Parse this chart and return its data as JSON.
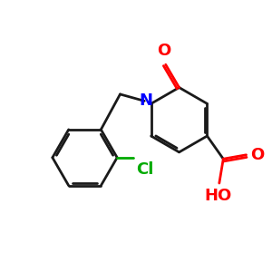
{
  "background_color": "#ffffff",
  "bond_color": "#1a1a1a",
  "n_color": "#0000ff",
  "o_color": "#ff0000",
  "cl_color": "#00aa00",
  "line_width": 2.0,
  "font_size": 12,
  "figsize": [
    3.0,
    3.0
  ],
  "dpi": 100,
  "xlim": [
    0,
    10
  ],
  "ylim": [
    0,
    10
  ]
}
